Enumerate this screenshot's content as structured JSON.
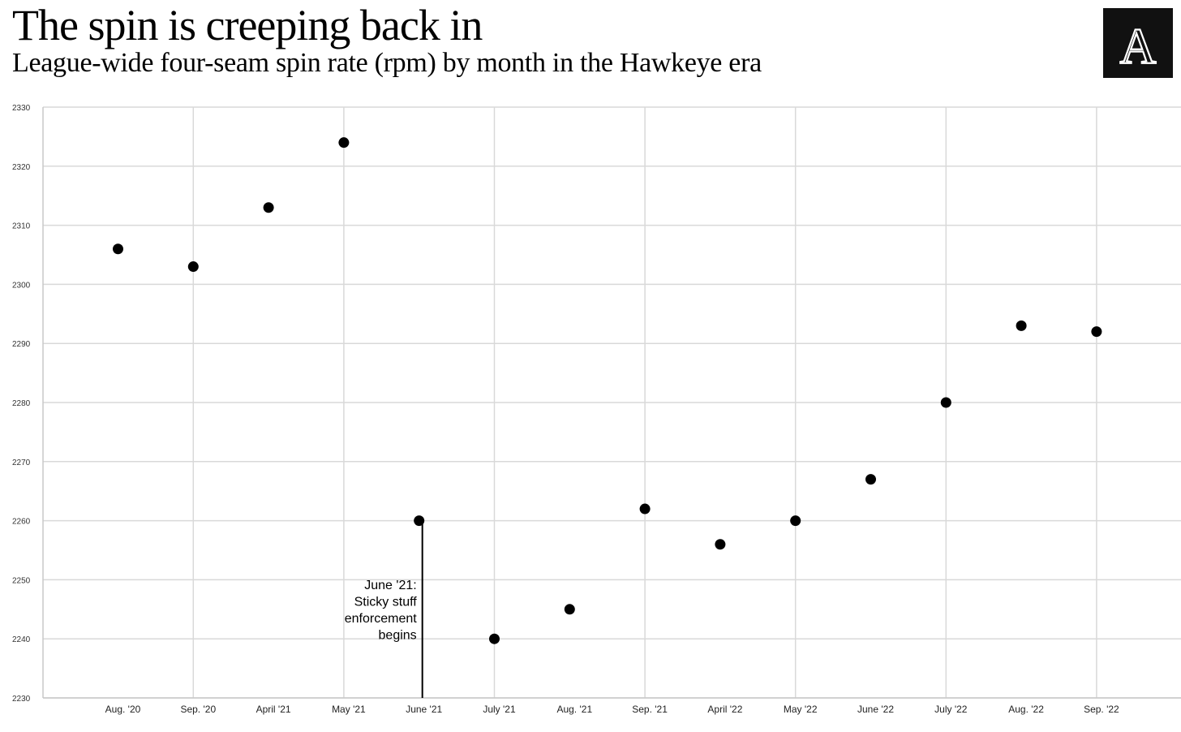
{
  "title": "The spin is creeping back in",
  "subtitle": "League-wide four-seam spin rate (rpm) by month in the Hawkeye era",
  "logo_text": "A",
  "colors": {
    "background": "#ffffff",
    "grid": "#d9d9d9",
    "point": "#000000",
    "logo_bg": "#111111",
    "logo_fg": "#ffffff"
  },
  "chart_data": {
    "type": "scatter",
    "title": "The spin is creeping back in",
    "subtitle": "League-wide four-seam spin rate (rpm) by month in the Hawkeye era",
    "xlabel": "",
    "ylabel": "",
    "categories": [
      "Aug. '20",
      "Sep. '20",
      "April '21",
      "May '21",
      "June '21",
      "July '21",
      "Aug. '21",
      "Sep. '21",
      "April '22",
      "May '22",
      "June '22",
      "July '22",
      "Aug. '22",
      "Sep. '22"
    ],
    "values": [
      2306,
      2303,
      2313,
      2324,
      2260,
      2240,
      2245,
      2262,
      2256,
      2260,
      2267,
      2280,
      2293,
      2292
    ],
    "ylim": [
      2230,
      2330
    ],
    "yticks": [
      2230,
      2240,
      2250,
      2260,
      2270,
      2280,
      2290,
      2300,
      2310,
      2320,
      2330
    ],
    "grid": true,
    "legend": "none",
    "annotation": {
      "category": "June '21",
      "lines": [
        "June '21:",
        "Sticky stuff",
        "enforcement",
        "begins"
      ]
    }
  }
}
